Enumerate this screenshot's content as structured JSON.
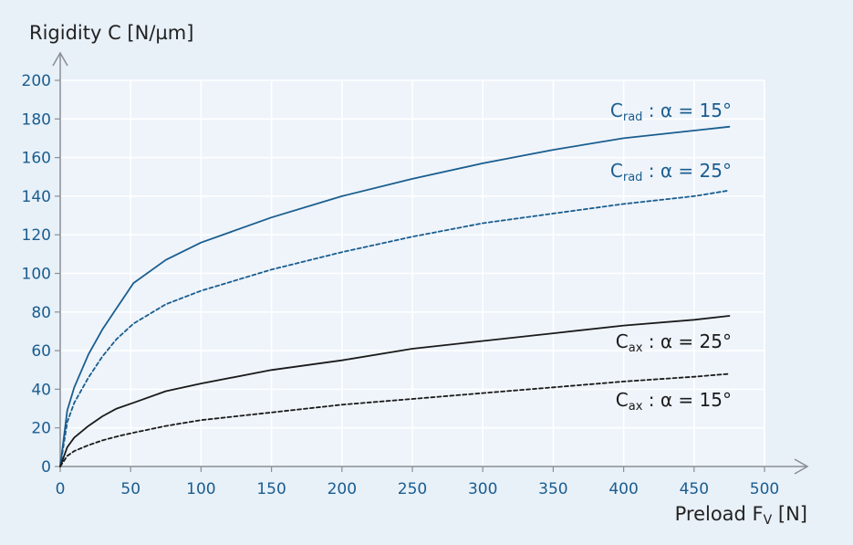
{
  "chart_data": {
    "type": "line",
    "ylabel": "Rigidity C [N/µm]",
    "xlabel": {
      "main": "Preload F",
      "sub": "V",
      "unit": " [N]"
    },
    "xlim": [
      0,
      500
    ],
    "ylim": [
      0,
      200
    ],
    "xticks": [
      0,
      50,
      100,
      150,
      200,
      250,
      300,
      350,
      400,
      450,
      500
    ],
    "yticks": [
      0,
      20,
      40,
      60,
      80,
      100,
      120,
      140,
      160,
      180,
      200
    ],
    "grid": true,
    "x": [
      0,
      5,
      10,
      20,
      30,
      40,
      52,
      75,
      100,
      150,
      200,
      250,
      300,
      350,
      400,
      450,
      475
    ],
    "series": [
      {
        "id": "crad-15",
        "label": {
          "main": "C",
          "sub": "rad",
          "rest": " : α = 15°"
        },
        "color": "#1a5d8f",
        "dash": "solid",
        "values": [
          0,
          29,
          41,
          58,
          71,
          82,
          95,
          107,
          116,
          129,
          140,
          149,
          157,
          164,
          170,
          174,
          176
        ]
      },
      {
        "id": "crad-25",
        "label": {
          "main": "C",
          "sub": "rad",
          "rest": " : α = 25°"
        },
        "color": "#1a5d8f",
        "dash": "dashed",
        "values": [
          0,
          23,
          33,
          46,
          57,
          66,
          74,
          84,
          91,
          102,
          111,
          119,
          126,
          131,
          136,
          140,
          143
        ]
      },
      {
        "id": "cax-25",
        "label": {
          "main": "C",
          "sub": "ax",
          "rest": " : α = 25°"
        },
        "color": "#1a1a1a",
        "dash": "solid",
        "values": [
          0,
          10,
          15,
          21,
          26,
          30,
          33,
          39,
          43,
          50,
          55,
          61,
          65,
          69,
          73,
          76,
          78
        ]
      },
      {
        "id": "cax-15",
        "label": {
          "main": "C",
          "sub": "ax",
          "rest": " : α = 15°"
        },
        "color": "#1a1a1a",
        "dash": "dashed",
        "values": [
          0,
          5.5,
          8,
          11,
          13.5,
          15.5,
          17.5,
          21,
          24,
          28,
          32,
          35,
          38,
          41,
          44,
          46.5,
          48
        ]
      }
    ]
  }
}
